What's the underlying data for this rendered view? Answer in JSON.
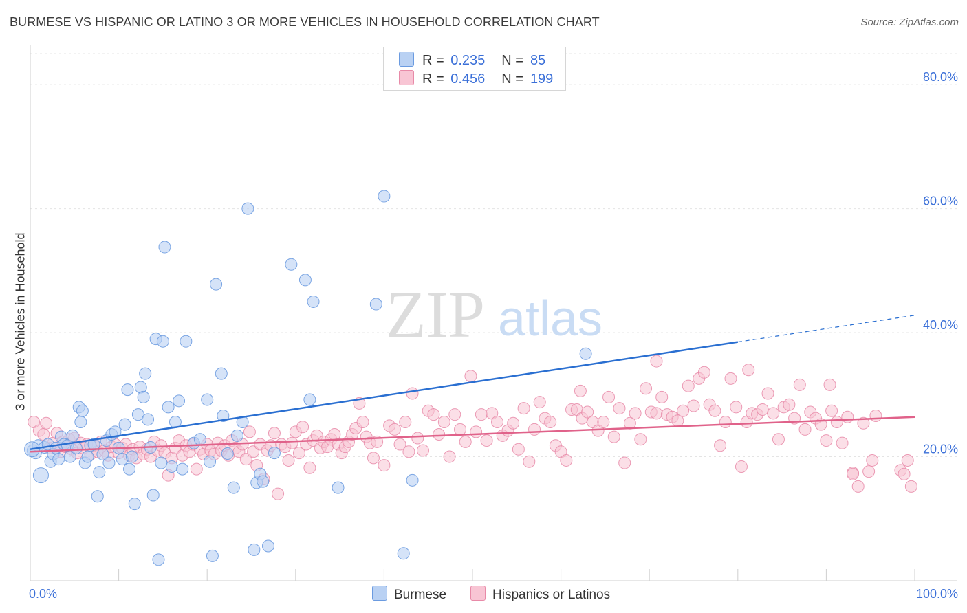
{
  "title": "BURMESE VS HISPANIC OR LATINO 3 OR MORE VEHICLES IN HOUSEHOLD CORRELATION CHART",
  "source": "Source: ZipAtlas.com",
  "watermark": {
    "zip": "ZIP",
    "atlas": "atlas"
  },
  "legend": {
    "rows": [
      {
        "label": "R =",
        "r": "0.235",
        "n_label": "N =",
        "n": "85",
        "color": "#b9d1f3",
        "border": "#6b9be0"
      },
      {
        "label": "R =",
        "r": "0.456",
        "n_label": "N =",
        "n": "199",
        "color": "#f8c5d4",
        "border": "#e88aa8"
      }
    ]
  },
  "bottom_legend": [
    {
      "label": "Burmese",
      "color": "#b9d1f3",
      "border": "#6b9be0"
    },
    {
      "label": "Hispanics or Latinos",
      "color": "#f8c5d4",
      "border": "#e88aa8"
    }
  ],
  "chart_data": {
    "type": "scatter",
    "title": "BURMESE VS HISPANIC OR LATINO 3 OR MORE VEHICLES IN HOUSEHOLD CORRELATION CHART",
    "xlabel": "",
    "ylabel": "3 or more Vehicles in Household",
    "xlim": [
      0,
      100
    ],
    "ylim": [
      0,
      85
    ],
    "x_tick_labels": [
      "0.0%",
      "100.0%"
    ],
    "y_ticks": [
      20,
      40,
      60,
      80
    ],
    "y_tick_labels": [
      "20.0%",
      "40.0%",
      "60.0%",
      "80.0%"
    ],
    "grid": "horizontal dashed",
    "legend_position": "top-center",
    "series": [
      {
        "name": "Burmese",
        "color": "#6b9be0",
        "fill": "#b9d1f3",
        "trend": {
          "x0": 0,
          "y0": 21.2,
          "x1": 80,
          "y1": 38.5,
          "dashed_to_x": 100,
          "dashed_to_y": 42.8,
          "color": "#2a6fd1"
        },
        "points": [
          [
            0.3,
            21
          ],
          [
            0.6,
            20.6
          ],
          [
            0.9,
            21.8
          ],
          [
            1.2,
            17
          ],
          [
            1.6,
            21.5
          ],
          [
            2.0,
            22
          ],
          [
            2.3,
            19.2
          ],
          [
            2.6,
            20.4
          ],
          [
            2.9,
            21.4
          ],
          [
            3.2,
            19.6
          ],
          [
            3.5,
            23.2
          ],
          [
            3.8,
            22
          ],
          [
            4.2,
            21.8
          ],
          [
            4.5,
            20
          ],
          [
            4.8,
            23.4
          ],
          [
            5.2,
            21.4
          ],
          [
            5.5,
            28
          ],
          [
            5.7,
            25.6
          ],
          [
            5.9,
            27.4
          ],
          [
            6.2,
            19
          ],
          [
            6.5,
            20
          ],
          [
            6.8,
            21.8
          ],
          [
            7.2,
            22
          ],
          [
            7.6,
            13.6
          ],
          [
            7.8,
            17.5
          ],
          [
            8.2,
            20.4
          ],
          [
            8.6,
            22.6
          ],
          [
            8.9,
            19
          ],
          [
            9.2,
            23.6
          ],
          [
            9.6,
            24
          ],
          [
            10.0,
            21.4
          ],
          [
            10.4,
            19.6
          ],
          [
            10.7,
            25.2
          ],
          [
            11.0,
            30.8
          ],
          [
            11.2,
            18
          ],
          [
            11.5,
            20
          ],
          [
            11.8,
            12.4
          ],
          [
            12.2,
            26.8
          ],
          [
            12.5,
            31.2
          ],
          [
            12.8,
            29.6
          ],
          [
            13.0,
            33.4
          ],
          [
            13.3,
            26
          ],
          [
            13.6,
            21.5
          ],
          [
            13.9,
            13.8
          ],
          [
            14.2,
            39
          ],
          [
            14.5,
            3.4
          ],
          [
            14.8,
            19
          ],
          [
            15.0,
            38.6
          ],
          [
            15.2,
            53.8
          ],
          [
            15.6,
            28
          ],
          [
            16.0,
            18.4
          ],
          [
            16.4,
            25.6
          ],
          [
            16.8,
            29
          ],
          [
            17.2,
            18
          ],
          [
            17.6,
            38.6
          ],
          [
            18.5,
            22.2
          ],
          [
            19.2,
            22.8
          ],
          [
            20.0,
            29.2
          ],
          [
            20.3,
            19.2
          ],
          [
            21.0,
            47.8
          ],
          [
            21.6,
            33.4
          ],
          [
            21.8,
            26.6
          ],
          [
            22.3,
            20.5
          ],
          [
            23.0,
            15
          ],
          [
            23.4,
            23.4
          ],
          [
            24.0,
            25.6
          ],
          [
            24.6,
            60
          ],
          [
            25.6,
            15.8
          ],
          [
            26.0,
            17.2
          ],
          [
            26.3,
            16
          ],
          [
            26.9,
            5.6
          ],
          [
            27.6,
            20.6
          ],
          [
            25.3,
            5
          ],
          [
            29.5,
            51
          ],
          [
            31.1,
            48.5
          ],
          [
            32.0,
            45
          ],
          [
            31.6,
            29.2
          ],
          [
            34.8,
            15
          ],
          [
            39.1,
            44.6
          ],
          [
            40.0,
            62
          ],
          [
            42.2,
            4.4
          ],
          [
            43.2,
            16.2
          ],
          [
            62.8,
            36.6
          ],
          [
            20.6,
            4
          ],
          [
            0.2,
            21.2
          ]
        ]
      },
      {
        "name": "Hispanics or Latinos",
        "color": "#e88aa8",
        "fill": "#f8c5d4",
        "trend": {
          "x0": 0,
          "y0": 20.8,
          "x1": 100,
          "y1": 26.4,
          "color": "#e0628a"
        },
        "points": [
          [
            0.4,
            25.6
          ],
          [
            1.0,
            24.2
          ],
          [
            1.5,
            23.6
          ],
          [
            1.8,
            25.4
          ],
          [
            2.2,
            21.4
          ],
          [
            2.6,
            22.2
          ],
          [
            3.0,
            23.8
          ],
          [
            3.4,
            20.8
          ],
          [
            3.7,
            22.4
          ],
          [
            4.0,
            21.6
          ],
          [
            4.4,
            22.8
          ],
          [
            4.7,
            21.2
          ],
          [
            5.0,
            23
          ],
          [
            5.3,
            20.6
          ],
          [
            5.7,
            22.2
          ],
          [
            6.0,
            21.4
          ],
          [
            6.4,
            22
          ],
          [
            6.8,
            20.4
          ],
          [
            7.2,
            21.8
          ],
          [
            7.6,
            20.8
          ],
          [
            8.0,
            22.4
          ],
          [
            8.4,
            21
          ],
          [
            8.8,
            20.2
          ],
          [
            9.2,
            21.6
          ],
          [
            9.6,
            22
          ],
          [
            10.0,
            20.6
          ],
          [
            10.4,
            21.4
          ],
          [
            10.8,
            22
          ],
          [
            11.2,
            20.2
          ],
          [
            11.6,
            21.2
          ],
          [
            12.0,
            19.8
          ],
          [
            12.4,
            21.6
          ],
          [
            12.8,
            20.4
          ],
          [
            13.2,
            21.2
          ],
          [
            13.6,
            20
          ],
          [
            14.0,
            22.4
          ],
          [
            14.4,
            21
          ],
          [
            14.8,
            21.8
          ],
          [
            15.2,
            20.6
          ],
          [
            15.6,
            17
          ],
          [
            16.0,
            19.8
          ],
          [
            16.4,
            21.4
          ],
          [
            16.8,
            22.6
          ],
          [
            17.2,
            20.2
          ],
          [
            17.6,
            21.8
          ],
          [
            18.0,
            20.8
          ],
          [
            18.4,
            22
          ],
          [
            18.8,
            18
          ],
          [
            19.2,
            21.2
          ],
          [
            19.6,
            20.4
          ],
          [
            20.0,
            22
          ],
          [
            20.4,
            21
          ],
          [
            20.8,
            20.4
          ],
          [
            21.2,
            22.2
          ],
          [
            21.6,
            21
          ],
          [
            22.0,
            21.8
          ],
          [
            22.4,
            20.2
          ],
          [
            22.8,
            22.6
          ],
          [
            23.2,
            21.4
          ],
          [
            23.6,
            20.8
          ],
          [
            24.0,
            22
          ],
          [
            24.4,
            19.6
          ],
          [
            24.8,
            24
          ],
          [
            25.2,
            20.8
          ],
          [
            25.6,
            18.6
          ],
          [
            26.0,
            22
          ],
          [
            26.4,
            16.4
          ],
          [
            26.8,
            21
          ],
          [
            27.2,
            21.8
          ],
          [
            27.6,
            23.8
          ],
          [
            28.0,
            14
          ],
          [
            28.4,
            22
          ],
          [
            28.8,
            21.6
          ],
          [
            29.2,
            19.4
          ],
          [
            29.6,
            22.2
          ],
          [
            30.0,
            24
          ],
          [
            30.4,
            20.6
          ],
          [
            30.8,
            24.8
          ],
          [
            31.2,
            22
          ],
          [
            31.6,
            18.2
          ],
          [
            32.0,
            22.6
          ],
          [
            32.4,
            23.4
          ],
          [
            32.8,
            21.4
          ],
          [
            33.2,
            22.4
          ],
          [
            33.6,
            21.6
          ],
          [
            34.0,
            22.8
          ],
          [
            34.4,
            23.6
          ],
          [
            34.8,
            22
          ],
          [
            35.2,
            20.6
          ],
          [
            35.6,
            21.6
          ],
          [
            36.0,
            22.4
          ],
          [
            36.4,
            23.6
          ],
          [
            36.8,
            24.6
          ],
          [
            37.2,
            28.6
          ],
          [
            37.6,
            25.6
          ],
          [
            38.0,
            23.2
          ],
          [
            38.4,
            22.2
          ],
          [
            38.8,
            19.8
          ],
          [
            39.2,
            22.4
          ],
          [
            40.0,
            18.6
          ],
          [
            40.6,
            25
          ],
          [
            41.2,
            24.4
          ],
          [
            41.8,
            22
          ],
          [
            42.4,
            25.6
          ],
          [
            42.8,
            20.8
          ],
          [
            43.2,
            30.2
          ],
          [
            43.8,
            23
          ],
          [
            44.4,
            21
          ],
          [
            45.0,
            27.4
          ],
          [
            45.6,
            26.8
          ],
          [
            46.2,
            23.6
          ],
          [
            46.8,
            25.6
          ],
          [
            47.4,
            20
          ],
          [
            48.0,
            26.8
          ],
          [
            48.6,
            24.4
          ],
          [
            49.2,
            22.4
          ],
          [
            49.8,
            33
          ],
          [
            50.4,
            24
          ],
          [
            51.0,
            26.8
          ],
          [
            51.6,
            22.6
          ],
          [
            52.2,
            27
          ],
          [
            52.8,
            25.6
          ],
          [
            53.4,
            23.4
          ],
          [
            54.0,
            24.2
          ],
          [
            54.6,
            25.4
          ],
          [
            55.2,
            21.2
          ],
          [
            55.8,
            27.8
          ],
          [
            56.4,
            19.2
          ],
          [
            57.0,
            24.4
          ],
          [
            57.6,
            28.8
          ],
          [
            58.2,
            26.2
          ],
          [
            58.8,
            25.6
          ],
          [
            59.4,
            21.8
          ],
          [
            60.0,
            20.8
          ],
          [
            60.6,
            19.4
          ],
          [
            61.2,
            27.6
          ],
          [
            61.8,
            27.6
          ],
          [
            62.4,
            26.2
          ],
          [
            63.0,
            27.2
          ],
          [
            63.6,
            25.6
          ],
          [
            64.2,
            24.2
          ],
          [
            64.8,
            25.6
          ],
          [
            65.4,
            29.6
          ],
          [
            66.0,
            23.2
          ],
          [
            66.6,
            27.8
          ],
          [
            67.2,
            19
          ],
          [
            67.8,
            25.4
          ],
          [
            68.4,
            27
          ],
          [
            69.0,
            22.8
          ],
          [
            69.6,
            31
          ],
          [
            70.2,
            27.2
          ],
          [
            70.8,
            27
          ],
          [
            71.4,
            29.6
          ],
          [
            72.0,
            26.8
          ],
          [
            72.6,
            26.4
          ],
          [
            73.2,
            25.8
          ],
          [
            73.8,
            27.4
          ],
          [
            74.4,
            31.4
          ],
          [
            75.0,
            28.2
          ],
          [
            75.6,
            32.6
          ],
          [
            76.2,
            33.6
          ],
          [
            76.8,
            28.4
          ],
          [
            77.4,
            27.4
          ],
          [
            78.0,
            21.8
          ],
          [
            78.6,
            25.6
          ],
          [
            79.2,
            32.6
          ],
          [
            79.8,
            28
          ],
          [
            80.4,
            18.4
          ],
          [
            81.0,
            25.6
          ],
          [
            81.6,
            27
          ],
          [
            82.2,
            26.8
          ],
          [
            82.8,
            27.6
          ],
          [
            83.4,
            30.2
          ],
          [
            84.0,
            27
          ],
          [
            84.6,
            22.8
          ],
          [
            85.2,
            28
          ],
          [
            85.8,
            28.4
          ],
          [
            86.4,
            26.2
          ],
          [
            87.0,
            31.6
          ],
          [
            87.6,
            24.4
          ],
          [
            88.2,
            27.2
          ],
          [
            88.8,
            26.2
          ],
          [
            89.4,
            25.2
          ],
          [
            90.0,
            22.6
          ],
          [
            90.6,
            27.4
          ],
          [
            91.2,
            25.6
          ],
          [
            91.8,
            22.2
          ],
          [
            92.4,
            26.4
          ],
          [
            93.0,
            17.4
          ],
          [
            93.6,
            15.2
          ],
          [
            94.2,
            25.4
          ],
          [
            94.8,
            17.6
          ],
          [
            95.2,
            19.4
          ],
          [
            95.6,
            26.6
          ],
          [
            62.2,
            30.6
          ],
          [
            70.8,
            35.4
          ],
          [
            81.2,
            34
          ],
          [
            90.4,
            31.6
          ],
          [
            93.0,
            17.2
          ],
          [
            98.4,
            17.8
          ],
          [
            99.2,
            19.4
          ],
          [
            98.8,
            17.2
          ],
          [
            99.6,
            15.2
          ]
        ]
      }
    ]
  }
}
